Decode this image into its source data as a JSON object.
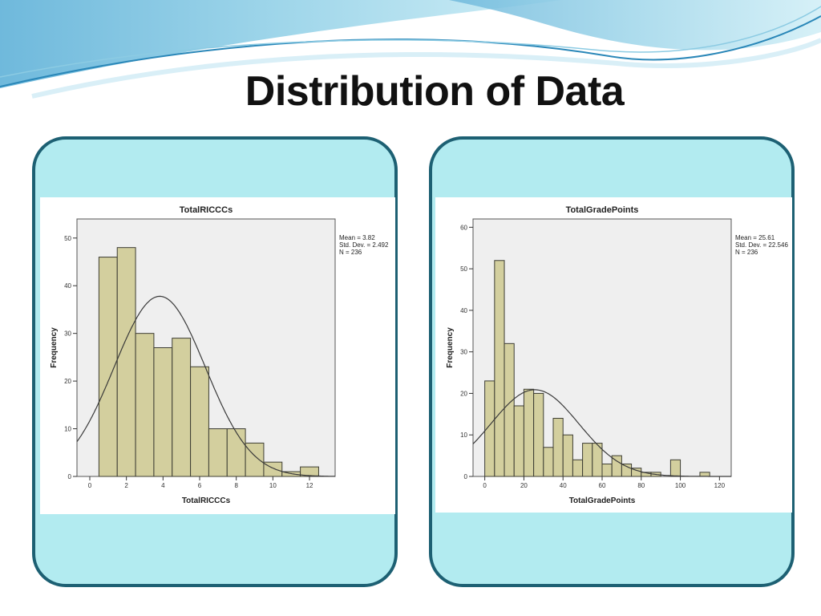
{
  "slide": {
    "title": "Distribution of Data"
  },
  "colors": {
    "panel_fill": "#b2ebf0",
    "panel_border": "#1d6073",
    "plot_background": "#efefef",
    "bar_fill": "#d3cf9e",
    "bar_stroke": "#3d3d33",
    "curve": "#3a3a3a"
  },
  "chart_data": [
    {
      "type": "bar",
      "histogram": true,
      "title": "TotalRICCCs",
      "xlabel": "TotalRICCCs",
      "ylabel": "Frequency",
      "bins": [
        {
          "x0": 0.5,
          "x1": 1.5,
          "count": 46
        },
        {
          "x0": 1.5,
          "x1": 2.5,
          "count": 48
        },
        {
          "x0": 2.5,
          "x1": 3.5,
          "count": 30
        },
        {
          "x0": 3.5,
          "x1": 4.5,
          "count": 27
        },
        {
          "x0": 4.5,
          "x1": 5.5,
          "count": 29
        },
        {
          "x0": 5.5,
          "x1": 6.5,
          "count": 23
        },
        {
          "x0": 6.5,
          "x1": 7.5,
          "count": 10
        },
        {
          "x0": 7.5,
          "x1": 8.5,
          "count": 10
        },
        {
          "x0": 8.5,
          "x1": 9.5,
          "count": 7
        },
        {
          "x0": 9.5,
          "x1": 10.5,
          "count": 3
        },
        {
          "x0": 10.5,
          "x1": 11.5,
          "count": 1
        },
        {
          "x0": 11.5,
          "x1": 12.5,
          "count": 2
        }
      ],
      "bin_width": 1,
      "normal_curve": true,
      "xlim": [
        -0.7,
        13.4
      ],
      "ylim": [
        0,
        54
      ],
      "xticks": [
        0,
        2,
        4,
        6,
        8,
        10,
        12
      ],
      "yticks": [
        0,
        10,
        20,
        30,
        40,
        50
      ],
      "stats": {
        "mean": 3.82,
        "sd": 2.492,
        "n": 236,
        "mean_label": "Mean = 3.82",
        "sd_label": "Std. Dev. = 2.492",
        "n_label": "N = 236"
      }
    },
    {
      "type": "bar",
      "histogram": true,
      "title": "TotalGradePoints",
      "xlabel": "TotalGradePoints",
      "ylabel": "Frequency",
      "bins": [
        {
          "x0": 0,
          "x1": 5,
          "count": 23
        },
        {
          "x0": 5,
          "x1": 10,
          "count": 52
        },
        {
          "x0": 10,
          "x1": 15,
          "count": 32
        },
        {
          "x0": 15,
          "x1": 20,
          "count": 17
        },
        {
          "x0": 20,
          "x1": 25,
          "count": 21
        },
        {
          "x0": 25,
          "x1": 30,
          "count": 20
        },
        {
          "x0": 30,
          "x1": 35,
          "count": 7
        },
        {
          "x0": 35,
          "x1": 40,
          "count": 14
        },
        {
          "x0": 40,
          "x1": 45,
          "count": 10
        },
        {
          "x0": 45,
          "x1": 50,
          "count": 4
        },
        {
          "x0": 50,
          "x1": 55,
          "count": 8
        },
        {
          "x0": 55,
          "x1": 60,
          "count": 8
        },
        {
          "x0": 60,
          "x1": 65,
          "count": 3
        },
        {
          "x0": 65,
          "x1": 70,
          "count": 5
        },
        {
          "x0": 70,
          "x1": 75,
          "count": 3
        },
        {
          "x0": 75,
          "x1": 80,
          "count": 2
        },
        {
          "x0": 80,
          "x1": 85,
          "count": 1
        },
        {
          "x0": 85,
          "x1": 90,
          "count": 1
        },
        {
          "x0": 90,
          "x1": 95,
          "count": 0
        },
        {
          "x0": 95,
          "x1": 100,
          "count": 4
        },
        {
          "x0": 100,
          "x1": 105,
          "count": 0
        },
        {
          "x0": 105,
          "x1": 110,
          "count": 0
        },
        {
          "x0": 110,
          "x1": 115,
          "count": 1
        }
      ],
      "bin_width": 5,
      "normal_curve": true,
      "xlim": [
        -6,
        126
      ],
      "ylim": [
        0,
        62
      ],
      "xticks": [
        0,
        20,
        40,
        60,
        80,
        100,
        120
      ],
      "yticks": [
        0,
        10,
        20,
        30,
        40,
        50,
        60
      ],
      "stats": {
        "mean": 25.61,
        "sd": 22.546,
        "n": 236,
        "mean_label": "Mean = 25.61",
        "sd_label": "Std. Dev. = 22.546",
        "n_label": "N = 236"
      }
    }
  ]
}
